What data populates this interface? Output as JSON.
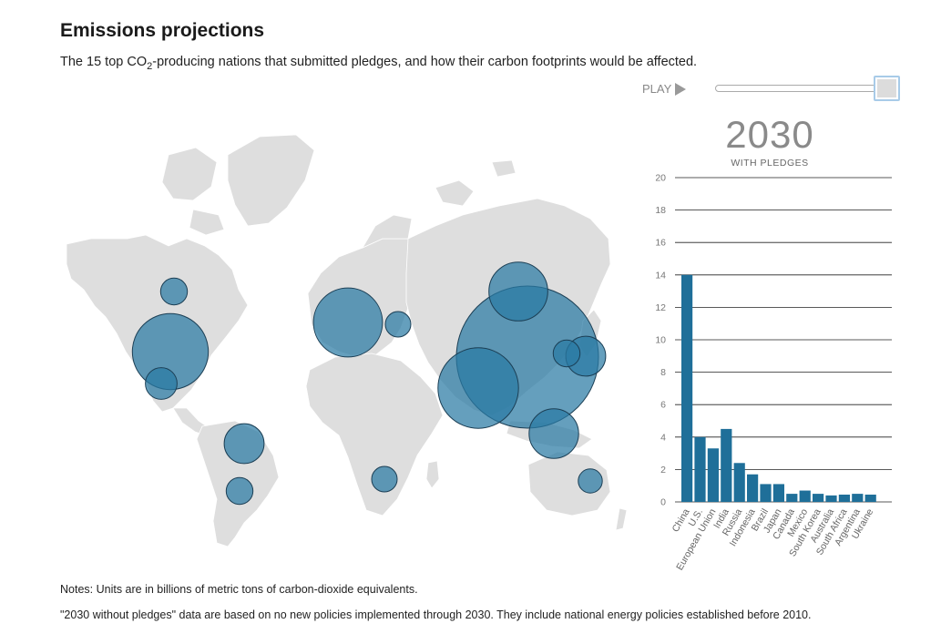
{
  "header": {
    "title": "Emissions projections",
    "subtitle_pre": "The 15 top CO",
    "subtitle_sub": "2",
    "subtitle_post": "-producing nations that submitted pledges, and how their carbon footprints would be affected."
  },
  "controls": {
    "play_label": "PLAY",
    "slider_value_fraction": 1.0
  },
  "year_display": {
    "year": "2030",
    "caption": "WITH PLEDGES"
  },
  "colors": {
    "bar": "#1f6f99",
    "bubble_fill": "#2a7aa4",
    "bubble_stroke": "#1c3f55",
    "land": "#dedede",
    "grid": "#222222"
  },
  "map": {
    "bubbles": [
      {
        "name": "China",
        "value": 14.0
      },
      {
        "name": "U.S.",
        "value": 4.0
      },
      {
        "name": "European Union",
        "value": 3.3
      },
      {
        "name": "India",
        "value": 4.5
      },
      {
        "name": "Russia",
        "value": 2.4
      },
      {
        "name": "Indonesia",
        "value": 1.7
      },
      {
        "name": "Brazil",
        "value": 1.1
      },
      {
        "name": "Japan",
        "value": 1.1
      },
      {
        "name": "Canada",
        "value": 0.5
      },
      {
        "name": "Mexico",
        "value": 0.7
      },
      {
        "name": "South Korea",
        "value": 0.5
      },
      {
        "name": "Australia",
        "value": 0.4
      },
      {
        "name": "South Africa",
        "value": 0.45
      },
      {
        "name": "Argentina",
        "value": 0.5
      },
      {
        "name": "Ukraine",
        "value": 0.45
      }
    ]
  },
  "chart_data": {
    "type": "bar",
    "title": "2030",
    "subtitle": "WITH PLEDGES",
    "xlabel": "",
    "ylabel": "",
    "ylim": [
      0,
      20
    ],
    "yticks": [
      0,
      2,
      4,
      6,
      8,
      10,
      12,
      14,
      16,
      18,
      20
    ],
    "ytick_labels": [
      "0",
      "2",
      "4",
      "6",
      "8",
      "10",
      "12",
      "14",
      "16",
      "18",
      "20"
    ],
    "categories": [
      "China",
      "U.S.",
      "European Union",
      "India",
      "Russia",
      "Indonesia",
      "Brazil",
      "Japan",
      "Canada",
      "Mexico",
      "South Korea",
      "Australia",
      "South Africa",
      "Argentina",
      "Ukraine"
    ],
    "values": [
      14.0,
      4.0,
      3.3,
      4.5,
      2.4,
      1.7,
      1.1,
      1.1,
      0.5,
      0.7,
      0.5,
      0.4,
      0.45,
      0.5,
      0.45
    ],
    "units": "billions of metric tons of carbon-dioxide equivalents",
    "grid": true
  },
  "notes": {
    "line1": "Notes: Units are in billions of metric tons of carbon-dioxide equivalents.",
    "line2": "\"2030 without pledges\" data are based on no new policies implemented through 2030. They include national energy policies established before 2010."
  }
}
